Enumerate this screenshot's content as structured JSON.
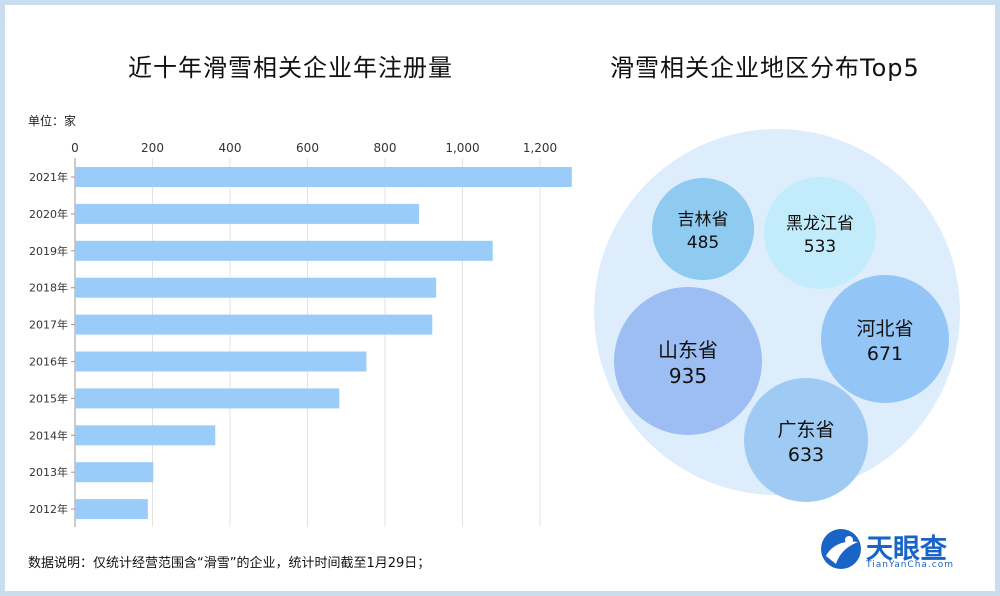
{
  "chart_data": [
    {
      "type": "bar",
      "orientation": "horizontal",
      "title": "近十年滑雪相关企业年注册量",
      "unit_label": "单位：家",
      "categories": [
        "2021年",
        "2020年",
        "2019年",
        "2018年",
        "2017年",
        "2016年",
        "2015年",
        "2014年",
        "2013年",
        "2012年"
      ],
      "values": [
        1282,
        888,
        1078,
        932,
        922,
        752,
        682,
        362,
        202,
        188
      ],
      "xlim": [
        0,
        1300
      ],
      "xticks": [
        0,
        200,
        400,
        600,
        800,
        1000,
        1200
      ],
      "xtick_labels": [
        "0",
        "200",
        "400",
        "600",
        "800",
        "1,000",
        "1,200"
      ],
      "bar_color": "#99ccf8",
      "grid": true
    },
    {
      "type": "bubble",
      "title": "滑雪相关企业地区分布Top5",
      "bubbles": [
        {
          "name": "吉林省",
          "value": "485",
          "color": "#8fcaf1"
        },
        {
          "name": "黑龙江省",
          "value": "533",
          "color": "#c2ecfb"
        },
        {
          "name": "河北省",
          "value": "671",
          "color": "#93c5f6"
        },
        {
          "name": "山东省",
          "value": "935",
          "color": "#9dbef2"
        },
        {
          "name": "广东省",
          "value": "633",
          "color": "#9ecaf4"
        }
      ],
      "outer_color": "#deedfb"
    }
  ],
  "footnote": "数据说明：仅统计经营范围含“滑雪”的企业，统计时间截至1月29日；",
  "brand": {
    "name": "天眼查",
    "domain": "TianYanCha.com",
    "color": "#1a63c7"
  }
}
